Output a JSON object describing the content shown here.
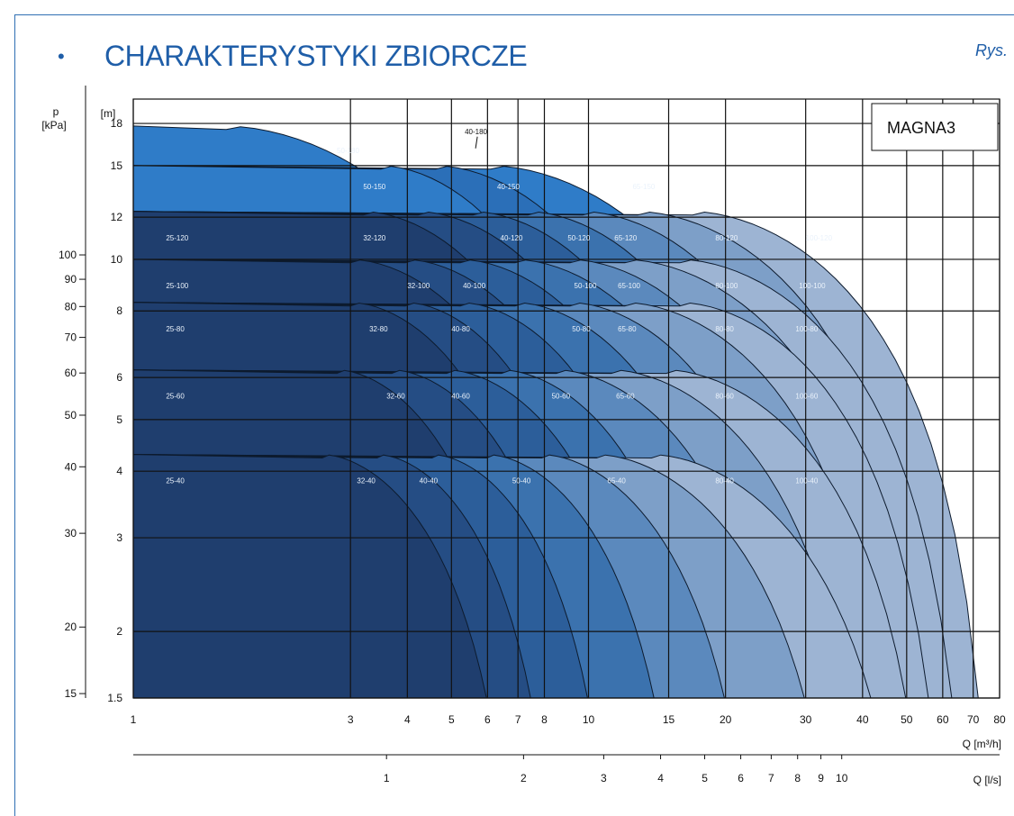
{
  "header": {
    "bullet": "•",
    "title": "CHARAKTERYSTYKI ZBIORCZE",
    "figure_ref": "Rys."
  },
  "chart_data": {
    "type": "area",
    "model_label": "MAGNA3",
    "x_scale": "log",
    "y_scale": "log",
    "xlim": [
      1,
      80
    ],
    "ylim": [
      1.5,
      20
    ],
    "xlabel": "Q [m³/h]",
    "x2label": "Q [l/s]",
    "ylabel": "[m]",
    "y2label_top": "p",
    "y2label": "[kPa]",
    "x_ticks": [
      1,
      3,
      4,
      5,
      6,
      7,
      8,
      10,
      15,
      20,
      30,
      40,
      50,
      60,
      70,
      80
    ],
    "x_tick_labels": [
      "1",
      "3",
      "4",
      "5",
      "6",
      "7",
      "8",
      "10",
      "15",
      "20",
      "30",
      "40",
      "50",
      "60",
      "70",
      "80"
    ],
    "x2_ticks": [
      1,
      2,
      3,
      4,
      5,
      6,
      7,
      8,
      9,
      10
    ],
    "x2_tick_labels": [
      "1",
      "2",
      "3",
      "4",
      "5",
      "6",
      "7",
      "8",
      "9",
      "10"
    ],
    "y_ticks": [
      1.5,
      2,
      3,
      4,
      5,
      6,
      8,
      10,
      12,
      15,
      18
    ],
    "y_tick_labels": [
      "1.5",
      "2",
      "3",
      "4",
      "5",
      "6",
      "8",
      "10",
      "12",
      "15",
      "18"
    ],
    "y2_ticks": [
      15,
      20,
      30,
      40,
      50,
      60,
      70,
      80,
      90,
      100
    ],
    "y2_tick_labels": [
      "15",
      "20",
      "30",
      "40",
      "50",
      "60",
      "70",
      "80",
      "90",
      "100"
    ],
    "grid": true,
    "bands": [
      {
        "head": 4.3,
        "knee": 2.6,
        "models": [
          {
            "label": "25-40",
            "q_end": 6.0,
            "q_label": 1.18
          },
          {
            "label": "32-40",
            "q_end": 7.5,
            "q_label": 3.1
          },
          {
            "label": "40-40",
            "q_end": 10.0,
            "q_label": 4.25
          },
          {
            "label": "50-40",
            "q_end": 14.0,
            "q_label": 6.8
          },
          {
            "label": "65-40",
            "q_end": 20.0,
            "q_label": 11.0
          },
          {
            "label": "80-40",
            "q_end": 30.0,
            "q_label": 19.0
          },
          {
            "label": "100-40",
            "q_end": 42.0,
            "q_label": 28.5
          }
        ]
      },
      {
        "head": 6.2,
        "knee": 2.8,
        "models": [
          {
            "label": "25-60",
            "q_end": 7.0,
            "q_label": 1.18
          },
          {
            "label": "32-60",
            "q_end": 9.5,
            "q_label": 3.6
          },
          {
            "label": "40-60",
            "q_end": 13.5,
            "q_label": 5.0
          },
          {
            "label": "50-60",
            "q_end": 18.0,
            "q_label": 8.3
          },
          {
            "label": "65-60",
            "q_end": 26.0,
            "q_label": 11.5
          },
          {
            "label": "80-60",
            "q_end": 37.0,
            "q_label": 19.0
          },
          {
            "label": "100-60",
            "q_end": 50.0,
            "q_label": 28.5
          }
        ]
      },
      {
        "head": 8.3,
        "knee": 3.0,
        "models": [
          {
            "label": "25-80",
            "q_end": 8.5,
            "q_label": 1.18
          },
          {
            "label": "32-80",
            "q_end": 11.0,
            "q_label": 3.3
          },
          {
            "label": "40-80",
            "q_end": 15.5,
            "q_label": 5.0
          },
          {
            "label": "50-80",
            "q_end": 22.0,
            "q_label": 9.2
          },
          {
            "label": "65-80",
            "q_end": 30.0,
            "q_label": 11.6
          },
          {
            "label": "80-80",
            "q_end": 44.0,
            "q_label": 19.0
          },
          {
            "label": "100-80",
            "q_end": 56.0,
            "q_label": 28.5
          }
        ]
      },
      {
        "head": 10.0,
        "knee": 3.0,
        "models": [
          {
            "label": "25-100",
            "q_end": 10.0,
            "q_label": 1.18
          },
          {
            "label": "32-100",
            "q_end": 13.0,
            "q_label": 4.0
          },
          {
            "label": "40-100",
            "q_end": 18.0,
            "q_label": 5.3
          },
          {
            "label": "50-100",
            "q_end": 25.0,
            "q_label": 9.3
          },
          {
            "label": "65-100",
            "q_end": 34.0,
            "q_label": 11.6
          },
          {
            "label": "80-100",
            "q_end": 50.0,
            "q_label": 19.0
          },
          {
            "label": "100-100",
            "q_end": 63.0,
            "q_label": 29.0
          }
        ]
      },
      {
        "head": 12.3,
        "knee": 3.2,
        "models": [
          {
            "label": "25-120",
            "q_end": 11.0,
            "q_label": 1.18
          },
          {
            "label": "32-120",
            "q_end": 15.0,
            "q_label": 3.2
          },
          {
            "label": "40-120",
            "q_end": 20.0,
            "q_label": 6.4
          },
          {
            "label": "50-120",
            "q_end": 27.0,
            "q_label": 9.0
          },
          {
            "label": "65-120",
            "q_end": 38.0,
            "q_label": 11.4
          },
          {
            "label": "80-120",
            "q_end": 55.0,
            "q_label": 19.0
          },
          {
            "label": "100-120",
            "q_end": 72.0,
            "q_label": 30.0
          }
        ]
      },
      {
        "head": 15.0,
        "knee": 3.5,
        "models": [
          {
            "label": "50-150",
            "q_end": 12.0,
            "q_label": 3.2
          },
          {
            "label": "40-150",
            "q_end": 18.0,
            "q_label": 6.3
          },
          {
            "label": "65-150",
            "q_end": 30.0,
            "q_label": 12.5
          }
        ]
      },
      {
        "head": 17.8,
        "knee": 1.6,
        "models": [
          {
            "label": "50-180",
            "q_end": 9.0,
            "q_label": 2.8
          }
        ]
      }
    ],
    "annotations": [
      {
        "label": "40-180",
        "q": 5.7,
        "h": 16.8
      }
    ]
  }
}
